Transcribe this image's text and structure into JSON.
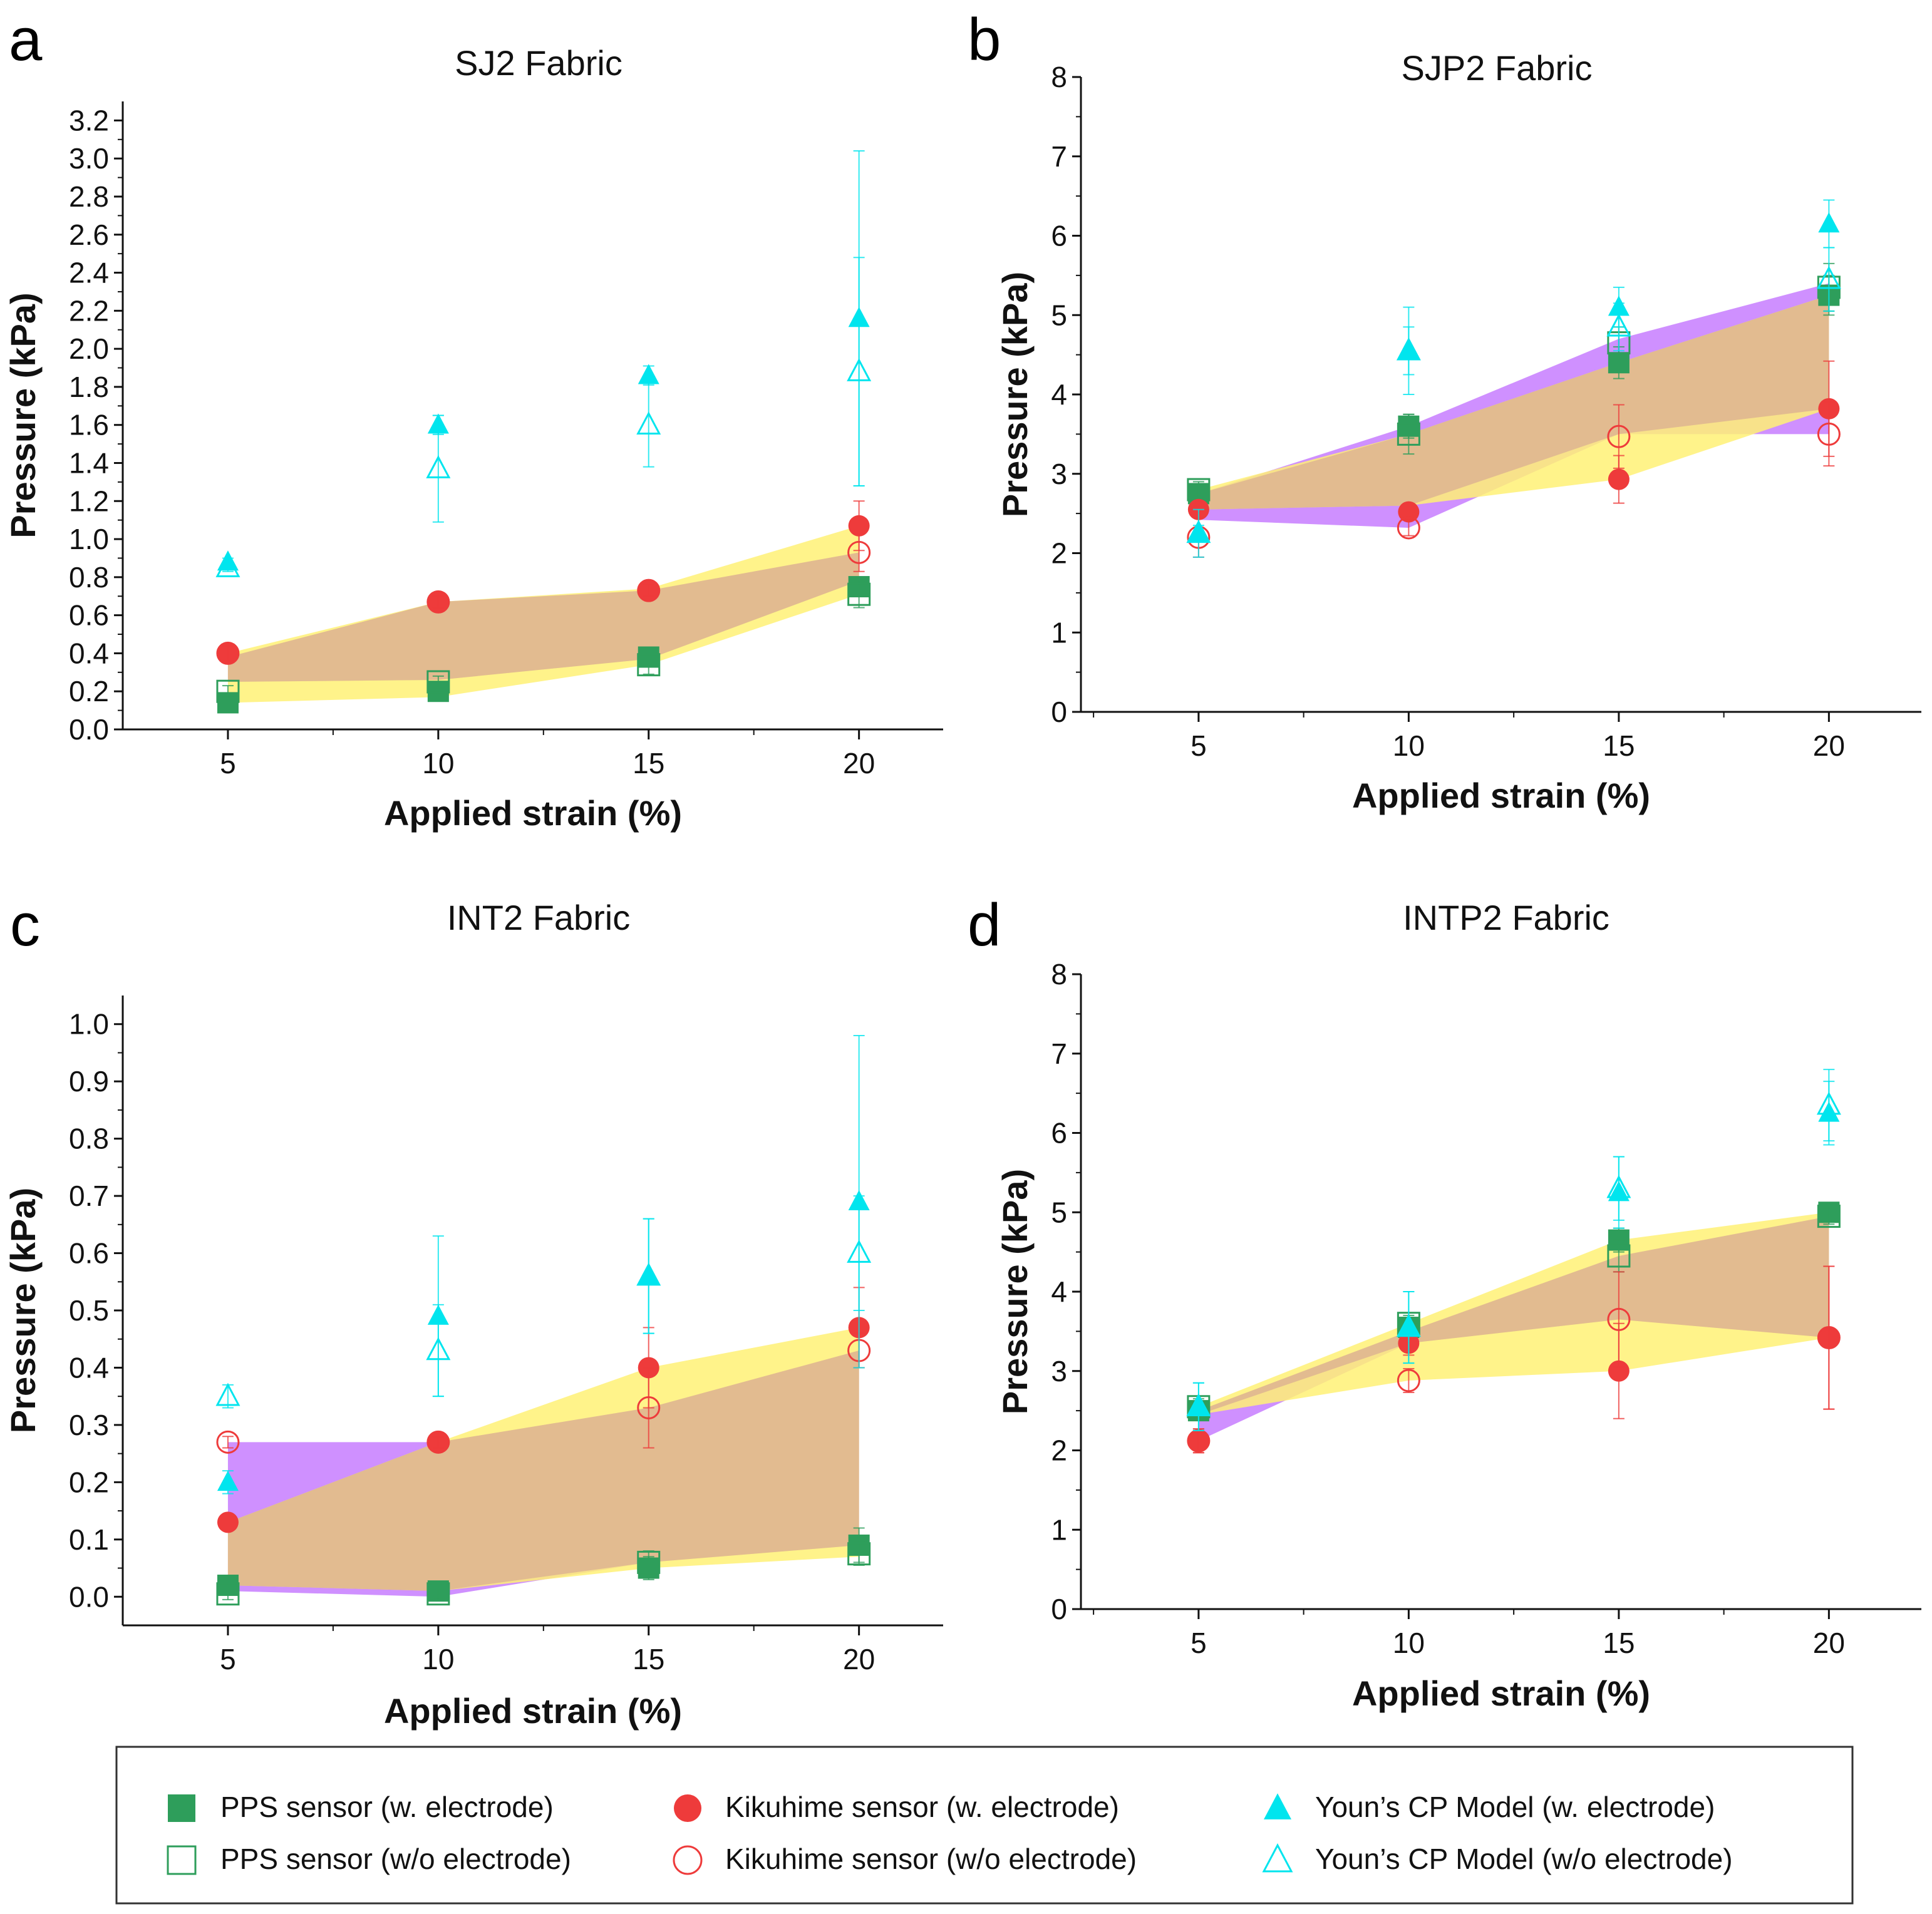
{
  "figure": {
    "legend": [
      {
        "label": "PPS sensor (w. electrode)",
        "marker": "square",
        "filled": true,
        "color": "#2e9e5b"
      },
      {
        "label": "PPS sensor (w/o electrode)",
        "marker": "square",
        "filled": false,
        "color": "#2e9e5b"
      },
      {
        "label": "Kikuhime sensor (w. electrode)",
        "marker": "circle",
        "filled": true,
        "color": "#ee3b3b"
      },
      {
        "label": "Kikuhime sensor (w/o electrode)",
        "marker": "circle",
        "filled": false,
        "color": "#ee3b3b"
      },
      {
        "label": "Youn’s CP Model (w. electrode)",
        "marker": "triangle",
        "filled": true,
        "color": "#00e5ee"
      },
      {
        "label": "Youn’s CP Model (w/o electrode)",
        "marker": "triangle",
        "filled": false,
        "color": "#00e5ee"
      }
    ],
    "band_colors": {
      "purple": "#c77dff",
      "yellow": "#fff176",
      "overlap": "#e0b890"
    }
  },
  "chart_data": [
    {
      "panel": "a",
      "type": "scatter",
      "title": "SJ2 Fabric",
      "xlabel": "Applied strain (%)",
      "ylabel": "Pressure (kPa)",
      "xlim": [
        2.5,
        22
      ],
      "ylim": [
        0,
        3.3
      ],
      "xticks": [
        5,
        10,
        15,
        20
      ],
      "yticks": [
        "0.0",
        "0.2",
        "0.4",
        "0.6",
        "0.8",
        "1.0",
        "1.2",
        "1.4",
        "1.6",
        "1.8",
        "2.0",
        "2.2",
        "2.4",
        "2.6",
        "2.8",
        "3.0",
        "3.2"
      ],
      "x": [
        5,
        10,
        15,
        20
      ],
      "series": [
        {
          "name": "PPS sensor (w. electrode)",
          "values": [
            0.14,
            0.2,
            0.38,
            0.75
          ],
          "err": [
            0.02,
            0.02,
            0.03,
            0.05
          ]
        },
        {
          "name": "PPS sensor (w/o electrode)",
          "values": [
            0.2,
            0.25,
            0.34,
            0.71
          ],
          "err": [
            0.03,
            0.03,
            0.05,
            0.07
          ]
        },
        {
          "name": "Kikuhime sensor (w. electrode)",
          "values": [
            0.4,
            0.67,
            0.73,
            1.07
          ],
          "err": [
            0.04,
            0.03,
            0.03,
            0.13
          ]
        },
        {
          "name": "Kikuhime sensor (w/o electrode)",
          "values": [
            0.4,
            0.67,
            0.73,
            0.93
          ],
          "err": [
            0.04,
            0.03,
            0.03,
            0.1
          ]
        },
        {
          "name": "Youn’s CP Model (w. electrode)",
          "values": [
            0.88,
            1.6,
            1.86,
            2.16
          ],
          "err": [
            0.02,
            0.05,
            0.05,
            0.88
          ]
        },
        {
          "name": "Youn’s CP Model (w/o electrode)",
          "values": [
            0.85,
            1.37,
            1.6,
            1.88
          ],
          "err": [
            0.02,
            0.28,
            0.22,
            0.6
          ]
        }
      ],
      "bands": {
        "purple": {
          "lower": [
            0.25,
            0.26,
            0.37,
            0.78
          ],
          "upper": [
            0.38,
            0.67,
            0.73,
            0.93
          ]
        },
        "yellow": {
          "lower": [
            0.14,
            0.17,
            0.34,
            0.71
          ],
          "upper": [
            0.4,
            0.67,
            0.74,
            1.07
          ]
        }
      }
    },
    {
      "panel": "b",
      "type": "scatter",
      "title": "SJP2 Fabric",
      "xlabel": "Applied strain (%)",
      "ylabel": "Pressure (kPa)",
      "xlim": [
        2.2,
        22.2
      ],
      "ylim": [
        0,
        8
      ],
      "xticks": [
        5,
        10,
        15,
        20
      ],
      "yticks": [
        "0",
        "1",
        "2",
        "3",
        "4",
        "5",
        "6",
        "7",
        "8"
      ],
      "x": [
        5,
        10,
        15,
        20
      ],
      "series": [
        {
          "name": "PPS sensor (w. electrode)",
          "values": [
            2.75,
            3.6,
            4.4,
            5.25
          ],
          "err": [
            0.1,
            0.15,
            0.2,
            0.25
          ]
        },
        {
          "name": "PPS sensor (w/o electrode)",
          "values": [
            2.8,
            3.5,
            4.65,
            5.35
          ],
          "err": [
            0.1,
            0.25,
            0.2,
            0.3
          ]
        },
        {
          "name": "Kikuhime sensor (w. electrode)",
          "values": [
            2.55,
            2.52,
            2.93,
            3.82
          ],
          "err": [
            0.1,
            0.1,
            0.3,
            0.6
          ]
        },
        {
          "name": "Kikuhime sensor (w/o electrode)",
          "values": [
            2.2,
            2.32,
            3.47,
            3.5
          ],
          "err": [
            0.25,
            0.1,
            0.4,
            0.4
          ]
        },
        {
          "name": "Youn’s CP Model (w. electrode)",
          "values": [
            2.25,
            4.55,
            5.1,
            6.15
          ],
          "err": [
            0.1,
            0.55,
            0.25,
            0.3
          ]
        },
        {
          "name": "Youn’s CP Model (w/o electrode)",
          "values": [
            2.25,
            4.55,
            4.85,
            5.45
          ],
          "err": [
            0.3,
            0.3,
            0.3,
            0.4
          ]
        }
      ],
      "bands": {
        "purple": {
          "lower": [
            2.42,
            2.32,
            3.5,
            3.5
          ],
          "upper": [
            2.75,
            3.6,
            4.7,
            5.4
          ]
        },
        "yellow": {
          "lower": [
            2.55,
            2.6,
            2.93,
            3.82
          ],
          "upper": [
            2.8,
            3.5,
            4.4,
            5.25
          ]
        }
      }
    },
    {
      "panel": "c",
      "type": "scatter",
      "title": "INT2 Fabric",
      "xlabel": "Applied strain (%)",
      "ylabel": "Pressure (kPa)",
      "xlim": [
        2.5,
        22
      ],
      "ylim": [
        -0.05,
        1.05
      ],
      "xticks": [
        5,
        10,
        15,
        20
      ],
      "yticks": [
        "0.0",
        "0.1",
        "0.2",
        "0.3",
        "0.4",
        "0.5",
        "0.6",
        "0.7",
        "0.8",
        "0.9",
        "1.0"
      ],
      "x": [
        5,
        10,
        15,
        20
      ],
      "series": [
        {
          "name": "PPS sensor (w. electrode)",
          "values": [
            0.02,
            0.01,
            0.05,
            0.09
          ],
          "err": [
            0.01,
            0.01,
            0.02,
            0.03
          ]
        },
        {
          "name": "PPS sensor (w/o electrode)",
          "values": [
            0.005,
            0.005,
            0.06,
            0.075
          ],
          "err": [
            0.01,
            0.01,
            0.02,
            0.02
          ]
        },
        {
          "name": "Kikuhime sensor (w. electrode)",
          "values": [
            0.13,
            0.27,
            0.4,
            0.47
          ],
          "err": [
            0.01,
            0.01,
            0.07,
            0.07
          ]
        },
        {
          "name": "Kikuhime sensor (w/o electrode)",
          "values": [
            0.27,
            0.27,
            0.33,
            0.43
          ],
          "err": [
            0.01,
            0.01,
            0.07,
            0.03
          ]
        },
        {
          "name": "Youn’s CP Model (w. electrode)",
          "values": [
            0.2,
            0.49,
            0.56,
            0.69
          ],
          "err": [
            0.02,
            0.14,
            0.1,
            0.29
          ]
        },
        {
          "name": "Youn’s CP Model (w/o electrode)",
          "values": [
            0.35,
            0.43,
            0.56,
            0.6
          ],
          "err": [
            0.02,
            0.08,
            0.1,
            0.1
          ]
        }
      ],
      "bands": {
        "purple": {
          "lower": [
            0.01,
            0.0,
            0.06,
            0.09
          ],
          "upper": [
            0.27,
            0.27,
            0.33,
            0.43
          ]
        },
        "yellow": {
          "lower": [
            0.02,
            0.01,
            0.05,
            0.07
          ],
          "upper": [
            0.13,
            0.27,
            0.4,
            0.47
          ]
        }
      }
    },
    {
      "panel": "d",
      "type": "scatter",
      "title": "INTP2 Fabric",
      "xlabel": "Applied strain (%)",
      "ylabel": "Pressure (kPa)",
      "xlim": [
        2.2,
        22.2
      ],
      "ylim": [
        0,
        8
      ],
      "xticks": [
        5,
        10,
        15,
        20
      ],
      "yticks": [
        "0",
        "1",
        "2",
        "3",
        "4",
        "5",
        "6",
        "7",
        "8"
      ],
      "x": [
        5,
        10,
        15,
        20
      ],
      "series": [
        {
          "name": "PPS sensor (w. electrode)",
          "values": [
            2.5,
            3.55,
            4.65,
            5.0
          ],
          "err": [
            0.1,
            0.1,
            0.15,
            0.1
          ]
        },
        {
          "name": "PPS sensor (w/o electrode)",
          "values": [
            2.55,
            3.6,
            4.45,
            4.95
          ],
          "err": [
            0.1,
            0.1,
            0.2,
            0.1
          ]
        },
        {
          "name": "Kikuhime sensor (w. electrode)",
          "values": [
            2.12,
            3.35,
            3.0,
            3.42
          ],
          "err": [
            0.15,
            0.15,
            0.6,
            0.9
          ]
        },
        {
          "name": "Kikuhime sensor (w/o electrode)",
          "values": [
            2.12,
            2.88,
            3.65,
            3.42
          ],
          "err": [
            0.15,
            0.15,
            0.6,
            0.9
          ]
        },
        {
          "name": "Youn’s CP Model (w. electrode)",
          "values": [
            2.55,
            3.55,
            5.25,
            6.25
          ],
          "err": [
            0.3,
            0.45,
            0.45,
            0.4
          ]
        },
        {
          "name": "Youn’s CP Model (w/o electrode)",
          "values": [
            2.55,
            3.55,
            5.3,
            6.35
          ],
          "err": [
            0.3,
            0.45,
            0.4,
            0.45
          ]
        }
      ],
      "bands": {
        "purple": {
          "lower": [
            2.12,
            3.35,
            3.65,
            3.42
          ],
          "upper": [
            2.5,
            3.5,
            4.45,
            4.95
          ]
        },
        "yellow": {
          "lower": [
            2.45,
            2.88,
            3.0,
            3.42
          ],
          "upper": [
            2.55,
            3.6,
            4.65,
            5.0
          ]
        }
      }
    }
  ]
}
